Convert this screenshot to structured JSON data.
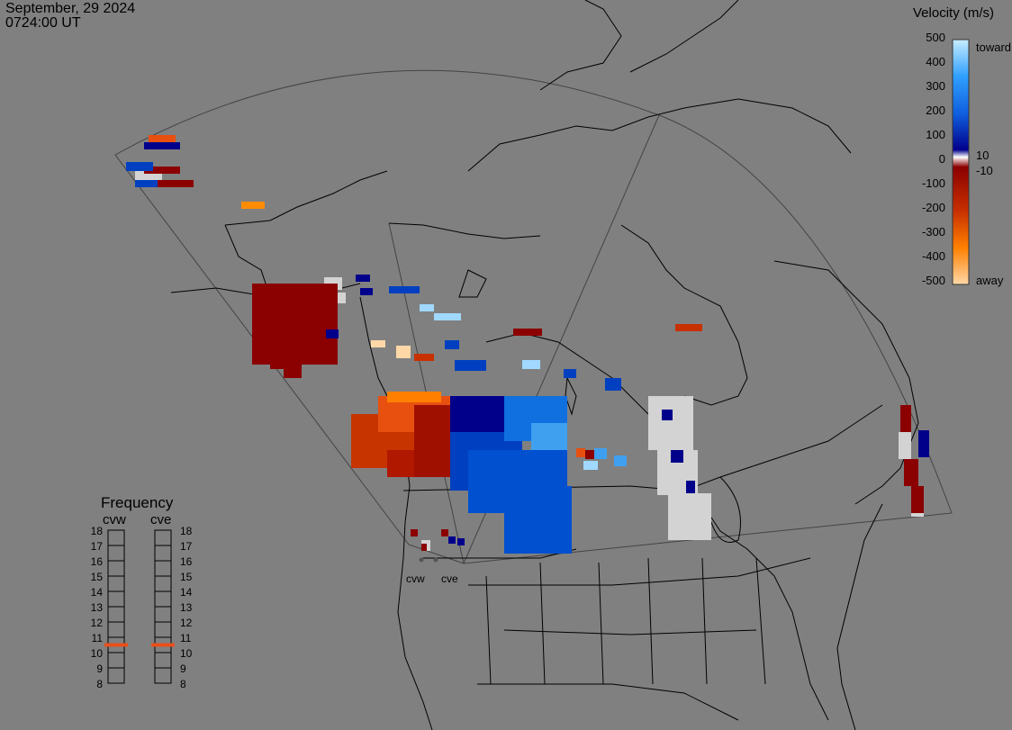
{
  "header": {
    "date": "September, 29 2024",
    "time": "0724:00 UT"
  },
  "colorbar": {
    "title": "Velocity (m/s)",
    "ticks": [
      "500",
      "400",
      "300",
      "200",
      "100",
      "0",
      "-100",
      "-200",
      "-300",
      "-400",
      "-500"
    ],
    "toward_label": "toward",
    "away_label": "away",
    "plus10_label": "10",
    "minus10_label": "-10"
  },
  "frequency": {
    "title": "Frequency",
    "left_label": "cvw",
    "right_label": "cve",
    "scale": [
      "18",
      "17",
      "16",
      "15",
      "14",
      "13",
      "12",
      "11",
      "10",
      "9",
      "8"
    ],
    "cvw_mhz": 11,
    "cve_mhz": 11,
    "marker_color": "#e8501c"
  },
  "sites": {
    "west": "cvw",
    "east": "cve"
  },
  "colors": {
    "background": "#808080",
    "toward_dark": "#00008b",
    "toward_light": "#c6ecff",
    "away_dark": "#8b0000",
    "away_light": "#ffd8a8",
    "ground_scatter": "#d3d3d3"
  }
}
